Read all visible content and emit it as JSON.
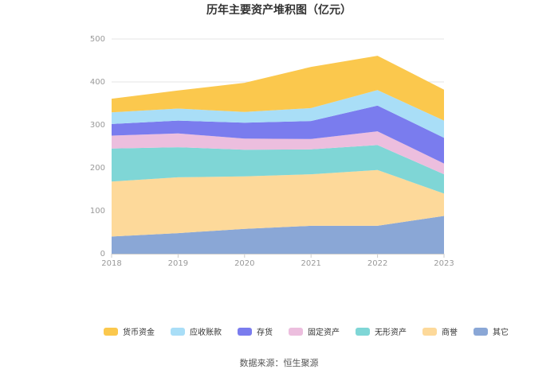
{
  "chart_data": {
    "type": "area",
    "stacked": true,
    "title": "历年主要资产堆积图（亿元）",
    "x": [
      "2018",
      "2019",
      "2020",
      "2021",
      "2022",
      "2023"
    ],
    "ylim": [
      0,
      500
    ],
    "yticks": [
      0,
      100,
      200,
      300,
      400,
      500
    ],
    "grid": true,
    "legend_position": "bottom",
    "series": [
      {
        "name": "其它",
        "color": "#8aa7d6",
        "values": [
          40,
          48,
          58,
          65,
          65,
          88
        ]
      },
      {
        "name": "商誉",
        "color": "#fdd99a",
        "values": [
          128,
          130,
          122,
          120,
          130,
          52
        ]
      },
      {
        "name": "无形资产",
        "color": "#7fd6d6",
        "values": [
          77,
          70,
          62,
          58,
          58,
          45
        ]
      },
      {
        "name": "固定资产",
        "color": "#ecbede",
        "values": [
          30,
          32,
          26,
          24,
          32,
          25
        ]
      },
      {
        "name": "存货",
        "color": "#7a7cee",
        "values": [
          27,
          30,
          37,
          42,
          60,
          60
        ]
      },
      {
        "name": "应收账款",
        "color": "#a9def7",
        "values": [
          27,
          28,
          25,
          30,
          36,
          40
        ]
      },
      {
        "name": "货币资金",
        "color": "#fbc84d",
        "values": [
          32,
          42,
          68,
          96,
          80,
          72
        ]
      }
    ],
    "legend_order": [
      "货币资金",
      "应收账款",
      "存货",
      "固定资产",
      "无形资产",
      "商誉",
      "其它"
    ]
  },
  "source": "数据来源：恒生聚源"
}
